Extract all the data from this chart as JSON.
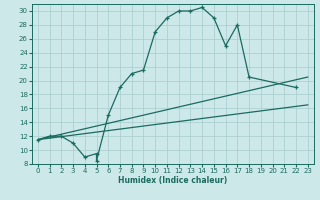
{
  "xlabel": "Humidex (Indice chaleur)",
  "bg_color": "#cde8e8",
  "grid_color": "#a8cccc",
  "line_color": "#1a6b60",
  "xlim": [
    -0.5,
    23.5
  ],
  "ylim": [
    8,
    31
  ],
  "xticks": [
    0,
    1,
    2,
    3,
    4,
    5,
    6,
    7,
    8,
    9,
    10,
    11,
    12,
    13,
    14,
    15,
    16,
    17,
    18,
    19,
    20,
    21,
    22,
    23
  ],
  "yticks": [
    8,
    10,
    12,
    14,
    16,
    18,
    20,
    22,
    24,
    26,
    28,
    30
  ],
  "curve1_x": [
    0,
    1,
    2,
    3,
    4,
    5,
    5,
    6,
    7,
    8,
    9,
    10,
    11,
    12,
    13,
    14,
    15,
    16,
    17,
    18,
    22
  ],
  "curve1_y": [
    11.5,
    12,
    12,
    11,
    9,
    9.5,
    8.5,
    15,
    19,
    21,
    21.5,
    27,
    29,
    30,
    30,
    30.5,
    29,
    25,
    28,
    20.5,
    19
  ],
  "curve2_x": [
    0,
    23
  ],
  "curve2_y": [
    11.5,
    20.5
  ],
  "curve3_x": [
    0,
    23
  ],
  "curve3_y": [
    11.5,
    16.5
  ]
}
